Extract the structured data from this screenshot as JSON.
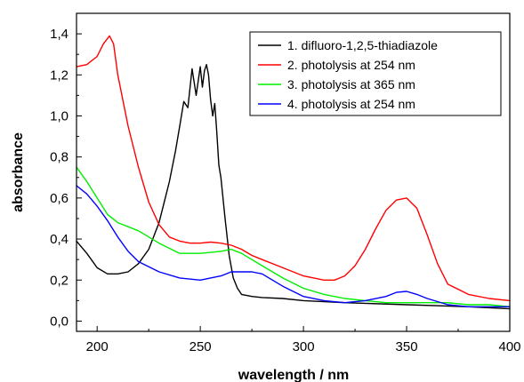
{
  "chart_data": {
    "type": "line",
    "xlabel": "wavelength / nm",
    "ylabel": "absorbance",
    "xlim": [
      190,
      400
    ],
    "ylim": [
      -0.05,
      1.5
    ],
    "xticks": [
      200,
      250,
      300,
      350,
      400
    ],
    "yticks": [
      0.0,
      0.2,
      0.4,
      0.6,
      0.8,
      1.0,
      1.2,
      1.4
    ],
    "ytick_labels": [
      "0,0",
      "0,2",
      "0,4",
      "0,6",
      "0,8",
      "1,0",
      "1,2",
      "1,4"
    ],
    "grid": false,
    "legend_position": "top-right",
    "series": [
      {
        "name": "1. difluoro-1,2,5-thiadiazole",
        "color": "#000000",
        "x": [
          190,
          195,
          200,
          205,
          210,
          215,
          220,
          225,
          230,
          235,
          238,
          240,
          242,
          244,
          246,
          248,
          250,
          251,
          252,
          253,
          254,
          255,
          256,
          257,
          258,
          259,
          260,
          262,
          264,
          266,
          268,
          270,
          275,
          280,
          290,
          300,
          320,
          350,
          380,
          400
        ],
        "y": [
          0.39,
          0.33,
          0.26,
          0.23,
          0.23,
          0.24,
          0.28,
          0.35,
          0.48,
          0.68,
          0.83,
          0.95,
          1.07,
          1.04,
          1.23,
          1.1,
          1.24,
          1.14,
          1.22,
          1.25,
          1.2,
          1.08,
          1.0,
          1.06,
          0.92,
          0.76,
          0.7,
          0.5,
          0.32,
          0.21,
          0.16,
          0.13,
          0.12,
          0.115,
          0.11,
          0.1,
          0.09,
          0.08,
          0.07,
          0.06
        ]
      },
      {
        "name": "2. photolysis at 254 nm",
        "color": "#ff0000",
        "x": [
          190,
          195,
          200,
          203,
          206,
          208,
          210,
          215,
          220,
          225,
          230,
          235,
          240,
          245,
          250,
          255,
          260,
          265,
          270,
          275,
          280,
          290,
          300,
          310,
          315,
          320,
          325,
          330,
          335,
          340,
          345,
          350,
          355,
          360,
          365,
          370,
          380,
          390,
          400
        ],
        "y": [
          1.24,
          1.25,
          1.29,
          1.35,
          1.39,
          1.35,
          1.2,
          0.95,
          0.75,
          0.58,
          0.47,
          0.41,
          0.39,
          0.38,
          0.38,
          0.385,
          0.38,
          0.37,
          0.35,
          0.32,
          0.3,
          0.26,
          0.22,
          0.2,
          0.2,
          0.22,
          0.27,
          0.35,
          0.45,
          0.54,
          0.59,
          0.6,
          0.55,
          0.42,
          0.28,
          0.18,
          0.13,
          0.11,
          0.1
        ]
      },
      {
        "name": "3. photolysis at 365 nm",
        "color": "#00ee00",
        "x": [
          190,
          195,
          200,
          205,
          210,
          220,
          230,
          240,
          250,
          260,
          265,
          270,
          275,
          280,
          290,
          300,
          310,
          320,
          330,
          340,
          350,
          360,
          370,
          380,
          390,
          400
        ],
        "y": [
          0.75,
          0.68,
          0.6,
          0.52,
          0.48,
          0.44,
          0.38,
          0.33,
          0.33,
          0.34,
          0.35,
          0.33,
          0.3,
          0.27,
          0.21,
          0.16,
          0.13,
          0.11,
          0.1,
          0.09,
          0.09,
          0.09,
          0.09,
          0.08,
          0.08,
          0.07
        ]
      },
      {
        "name": "4. photolysis at 254 nm",
        "color": "#0000ff",
        "x": [
          190,
          195,
          200,
          205,
          210,
          215,
          220,
          230,
          240,
          250,
          255,
          260,
          265,
          270,
          275,
          280,
          285,
          290,
          300,
          310,
          320,
          330,
          340,
          345,
          350,
          355,
          360,
          370,
          380,
          390,
          400
        ],
        "y": [
          0.66,
          0.62,
          0.56,
          0.49,
          0.41,
          0.34,
          0.29,
          0.24,
          0.21,
          0.2,
          0.21,
          0.22,
          0.24,
          0.24,
          0.24,
          0.23,
          0.2,
          0.17,
          0.12,
          0.1,
          0.09,
          0.1,
          0.12,
          0.14,
          0.145,
          0.13,
          0.11,
          0.08,
          0.07,
          0.07,
          0.07
        ]
      }
    ]
  }
}
